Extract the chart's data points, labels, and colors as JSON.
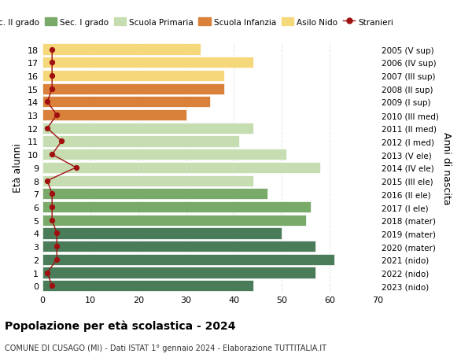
{
  "ages": [
    18,
    17,
    16,
    15,
    14,
    13,
    12,
    11,
    10,
    9,
    8,
    7,
    6,
    5,
    4,
    3,
    2,
    1,
    0
  ],
  "years": [
    "2005 (V sup)",
    "2006 (IV sup)",
    "2007 (III sup)",
    "2008 (II sup)",
    "2009 (I sup)",
    "2010 (III med)",
    "2011 (II med)",
    "2012 (I med)",
    "2013 (V ele)",
    "2014 (IV ele)",
    "2015 (III ele)",
    "2016 (II ele)",
    "2017 (I ele)",
    "2018 (mater)",
    "2019 (mater)",
    "2020 (mater)",
    "2021 (nido)",
    "2022 (nido)",
    "2023 (nido)"
  ],
  "bar_values": [
    44,
    57,
    61,
    57,
    50,
    55,
    56,
    47,
    44,
    58,
    51,
    41,
    44,
    30,
    35,
    38,
    38,
    44,
    33
  ],
  "bar_colors": [
    "#4a7c59",
    "#4a7c59",
    "#4a7c59",
    "#4a7c59",
    "#4a7c59",
    "#7aaa6a",
    "#7aaa6a",
    "#7aaa6a",
    "#c5ddb0",
    "#c5ddb0",
    "#c5ddb0",
    "#c5ddb0",
    "#c5ddb0",
    "#d9813a",
    "#d9813a",
    "#d9813a",
    "#f5d87a",
    "#f5d87a",
    "#f5d87a"
  ],
  "stranieri_values": [
    2,
    1,
    3,
    3,
    3,
    2,
    2,
    2,
    1,
    7,
    2,
    4,
    1,
    3,
    1,
    2,
    2,
    2,
    2
  ],
  "stranieri_color": "#a01010",
  "title_bold": "Popolazione per età scolastica - 2024",
  "subtitle": "COMUNE DI CUSAGO (MI) - Dati ISTAT 1° gennaio 2024 - Elaborazione TUTTITALIA.IT",
  "ylabel_left": "Età alunni",
  "ylabel_right": "Anni di nascita",
  "xlim": [
    0,
    70
  ],
  "xticks": [
    0,
    10,
    20,
    30,
    40,
    50,
    60,
    70
  ],
  "legend_items": [
    {
      "label": "Sec. II grado",
      "color": "#4a7c59"
    },
    {
      "label": "Sec. I grado",
      "color": "#7aaa6a"
    },
    {
      "label": "Scuola Primaria",
      "color": "#c5ddb0"
    },
    {
      "label": "Scuola Infanzia",
      "color": "#d9813a"
    },
    {
      "label": "Asilo Nido",
      "color": "#f5d87a"
    },
    {
      "label": "Stranieri",
      "color": "#a01010"
    }
  ],
  "bg_color": "#ffffff",
  "grid_color": "#cccccc"
}
